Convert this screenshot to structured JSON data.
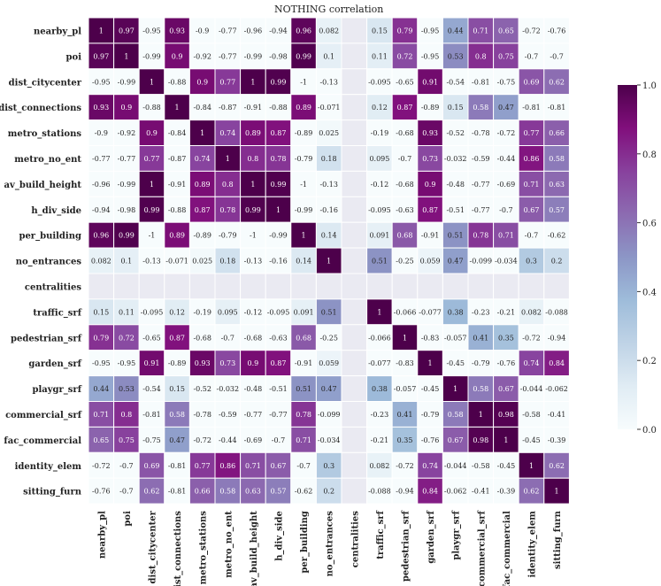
{
  "chart_data": {
    "type": "heatmap",
    "title": "NOTHING correlation",
    "labels": [
      "nearby_pl",
      "poi",
      "dist_citycenter",
      "dist_connections",
      "metro_stations",
      "metro_no_ent",
      "av_build_height",
      "h_div_side",
      "per_building",
      "no_entrances",
      "centralities",
      "traffic_srf",
      "pedestrian_srf",
      "garden_srf",
      "playgr_srf",
      "commercial_srf",
      "fac_commercial",
      "identity_elem",
      "sitting_furn"
    ],
    "matrix": [
      [
        1,
        0.97,
        -0.95,
        0.93,
        -0.9,
        -0.77,
        -0.96,
        -0.94,
        0.96,
        0.082,
        null,
        0.15,
        0.79,
        -0.95,
        0.44,
        0.71,
        0.65,
        -0.72,
        -0.76
      ],
      [
        0.97,
        1,
        -0.99,
        0.9,
        -0.92,
        -0.77,
        -0.99,
        -0.98,
        0.99,
        0.1,
        null,
        0.11,
        0.72,
        -0.95,
        0.53,
        0.8,
        0.75,
        -0.7,
        -0.7
      ],
      [
        -0.95,
        -0.99,
        1,
        -0.88,
        0.9,
        0.77,
        1,
        0.99,
        -1,
        -0.13,
        null,
        -0.095,
        -0.65,
        0.91,
        -0.54,
        -0.81,
        -0.75,
        0.69,
        0.62
      ],
      [
        0.93,
        0.9,
        -0.88,
        1,
        -0.84,
        -0.87,
        -0.91,
        -0.88,
        0.89,
        -0.071,
        null,
        0.12,
        0.87,
        -0.89,
        0.15,
        0.58,
        0.47,
        -0.81,
        -0.81
      ],
      [
        -0.9,
        -0.92,
        0.9,
        -0.84,
        1,
        0.74,
        0.89,
        0.87,
        -0.89,
        0.025,
        null,
        -0.19,
        -0.68,
        0.93,
        -0.52,
        -0.78,
        -0.72,
        0.77,
        0.66
      ],
      [
        -0.77,
        -0.77,
        0.77,
        -0.87,
        0.74,
        1,
        0.8,
        0.78,
        -0.79,
        0.18,
        null,
        0.095,
        -0.7,
        0.73,
        -0.032,
        -0.59,
        -0.44,
        0.86,
        0.58
      ],
      [
        -0.96,
        -0.99,
        1,
        -0.91,
        0.89,
        0.8,
        1,
        0.99,
        -1,
        -0.13,
        null,
        -0.12,
        -0.68,
        0.9,
        -0.48,
        -0.77,
        -0.69,
        0.71,
        0.63
      ],
      [
        -0.94,
        -0.98,
        0.99,
        -0.88,
        0.87,
        0.78,
        0.99,
        1,
        -0.99,
        -0.16,
        null,
        -0.095,
        -0.63,
        0.87,
        -0.51,
        -0.77,
        -0.7,
        0.67,
        0.57
      ],
      [
        0.96,
        0.99,
        -1,
        0.89,
        -0.89,
        -0.79,
        -1,
        -0.99,
        1,
        0.14,
        null,
        0.091,
        0.68,
        -0.91,
        0.51,
        0.78,
        0.71,
        -0.7,
        -0.62
      ],
      [
        0.082,
        0.1,
        -0.13,
        -0.071,
        0.025,
        0.18,
        -0.13,
        -0.16,
        0.14,
        1,
        null,
        0.51,
        -0.25,
        0.059,
        0.47,
        -0.099,
        -0.034,
        0.3,
        0.2
      ],
      [
        null,
        null,
        null,
        null,
        null,
        null,
        null,
        null,
        null,
        null,
        null,
        null,
        null,
        null,
        null,
        null,
        null,
        null,
        null
      ],
      [
        0.15,
        0.11,
        -0.095,
        0.12,
        -0.19,
        0.095,
        -0.12,
        -0.095,
        0.091,
        0.51,
        null,
        1,
        -0.066,
        -0.077,
        0.38,
        -0.23,
        -0.21,
        0.082,
        -0.088
      ],
      [
        0.79,
        0.72,
        -0.65,
        0.87,
        -0.68,
        -0.7,
        -0.68,
        -0.63,
        0.68,
        -0.25,
        null,
        -0.066,
        1,
        -0.83,
        -0.057,
        0.41,
        0.35,
        -0.72,
        -0.94
      ],
      [
        -0.95,
        -0.95,
        0.91,
        -0.89,
        0.93,
        0.73,
        0.9,
        0.87,
        -0.91,
        0.059,
        null,
        -0.077,
        -0.83,
        1,
        -0.45,
        -0.79,
        -0.76,
        0.74,
        0.84
      ],
      [
        0.44,
        0.53,
        -0.54,
        0.15,
        -0.52,
        -0.032,
        -0.48,
        -0.51,
        0.51,
        0.47,
        null,
        0.38,
        -0.057,
        -0.45,
        1,
        0.58,
        0.67,
        -0.044,
        -0.062
      ],
      [
        0.71,
        0.8,
        -0.81,
        0.58,
        -0.78,
        -0.59,
        -0.77,
        -0.77,
        0.78,
        -0.099,
        null,
        -0.23,
        0.41,
        -0.79,
        0.58,
        1,
        0.98,
        -0.58,
        -0.41
      ],
      [
        0.65,
        0.75,
        -0.75,
        0.47,
        -0.72,
        -0.44,
        -0.69,
        -0.7,
        0.71,
        -0.034,
        null,
        -0.21,
        0.35,
        -0.76,
        0.67,
        0.98,
        1,
        -0.45,
        -0.39
      ],
      [
        -0.72,
        -0.7,
        0.69,
        -0.81,
        0.77,
        0.86,
        0.71,
        0.67,
        -0.7,
        0.3,
        null,
        0.082,
        -0.72,
        0.74,
        -0.044,
        -0.58,
        -0.45,
        1,
        0.62
      ],
      [
        -0.76,
        -0.7,
        0.62,
        -0.81,
        0.66,
        0.58,
        0.63,
        0.57,
        -0.62,
        0.2,
        null,
        -0.088,
        -0.94,
        0.84,
        -0.062,
        -0.41,
        -0.39,
        0.62,
        1
      ]
    ],
    "colorscale": {
      "name": "BuPu",
      "range": [
        0,
        1
      ],
      "ticks": [
        "0.0",
        "0.2",
        "0.4",
        "0.6",
        "0.8",
        "1.0"
      ],
      "stops": [
        "#f7fcfd",
        "#e0ecf4",
        "#bfd3e6",
        "#9ebcda",
        "#8c96c6",
        "#8c6bb1",
        "#88419d",
        "#810f7c",
        "#4d004b"
      ]
    },
    "missing_color": "#eaeaf2",
    "grid_line_color": "#ffffff",
    "grid": true
  }
}
